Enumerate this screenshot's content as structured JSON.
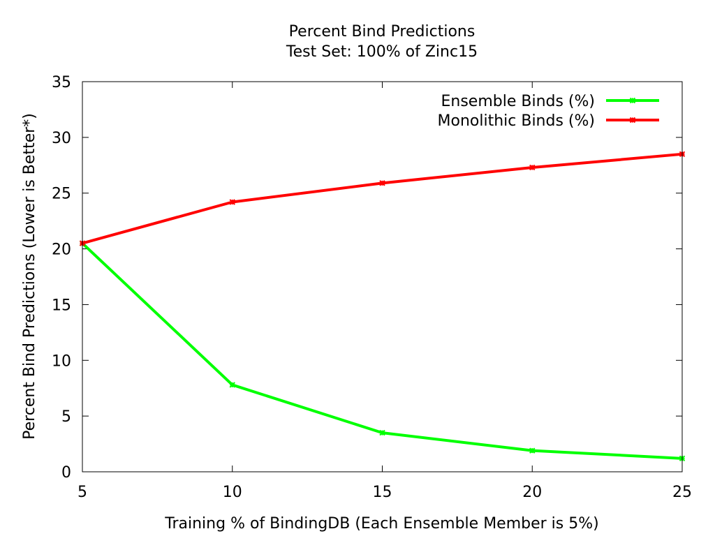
{
  "chart_data": {
    "type": "line",
    "title": "Percent Bind Predictions",
    "subtitle": "Test Set: 100% of Zinc15",
    "xlabel": "Training % of BindingDB (Each Ensemble Member is 5%)",
    "ylabel": "Percent Bind Predictions (Lower is Better*)",
    "x": [
      5,
      10,
      15,
      20,
      25
    ],
    "xlim": [
      5,
      25
    ],
    "ylim": [
      0,
      35
    ],
    "xticks": [
      5,
      10,
      15,
      20,
      25
    ],
    "yticks": [
      0,
      5,
      10,
      15,
      20,
      25,
      30,
      35
    ],
    "grid": false,
    "legend_position": "top-right",
    "series": [
      {
        "name": "Ensemble Binds (%)",
        "color": "#00ff00",
        "values": [
          20.5,
          7.8,
          3.5,
          1.9,
          1.2
        ]
      },
      {
        "name": "Monolithic Binds (%)",
        "color": "#ff0000",
        "values": [
          20.5,
          24.2,
          25.9,
          27.3,
          28.5
        ]
      }
    ]
  }
}
